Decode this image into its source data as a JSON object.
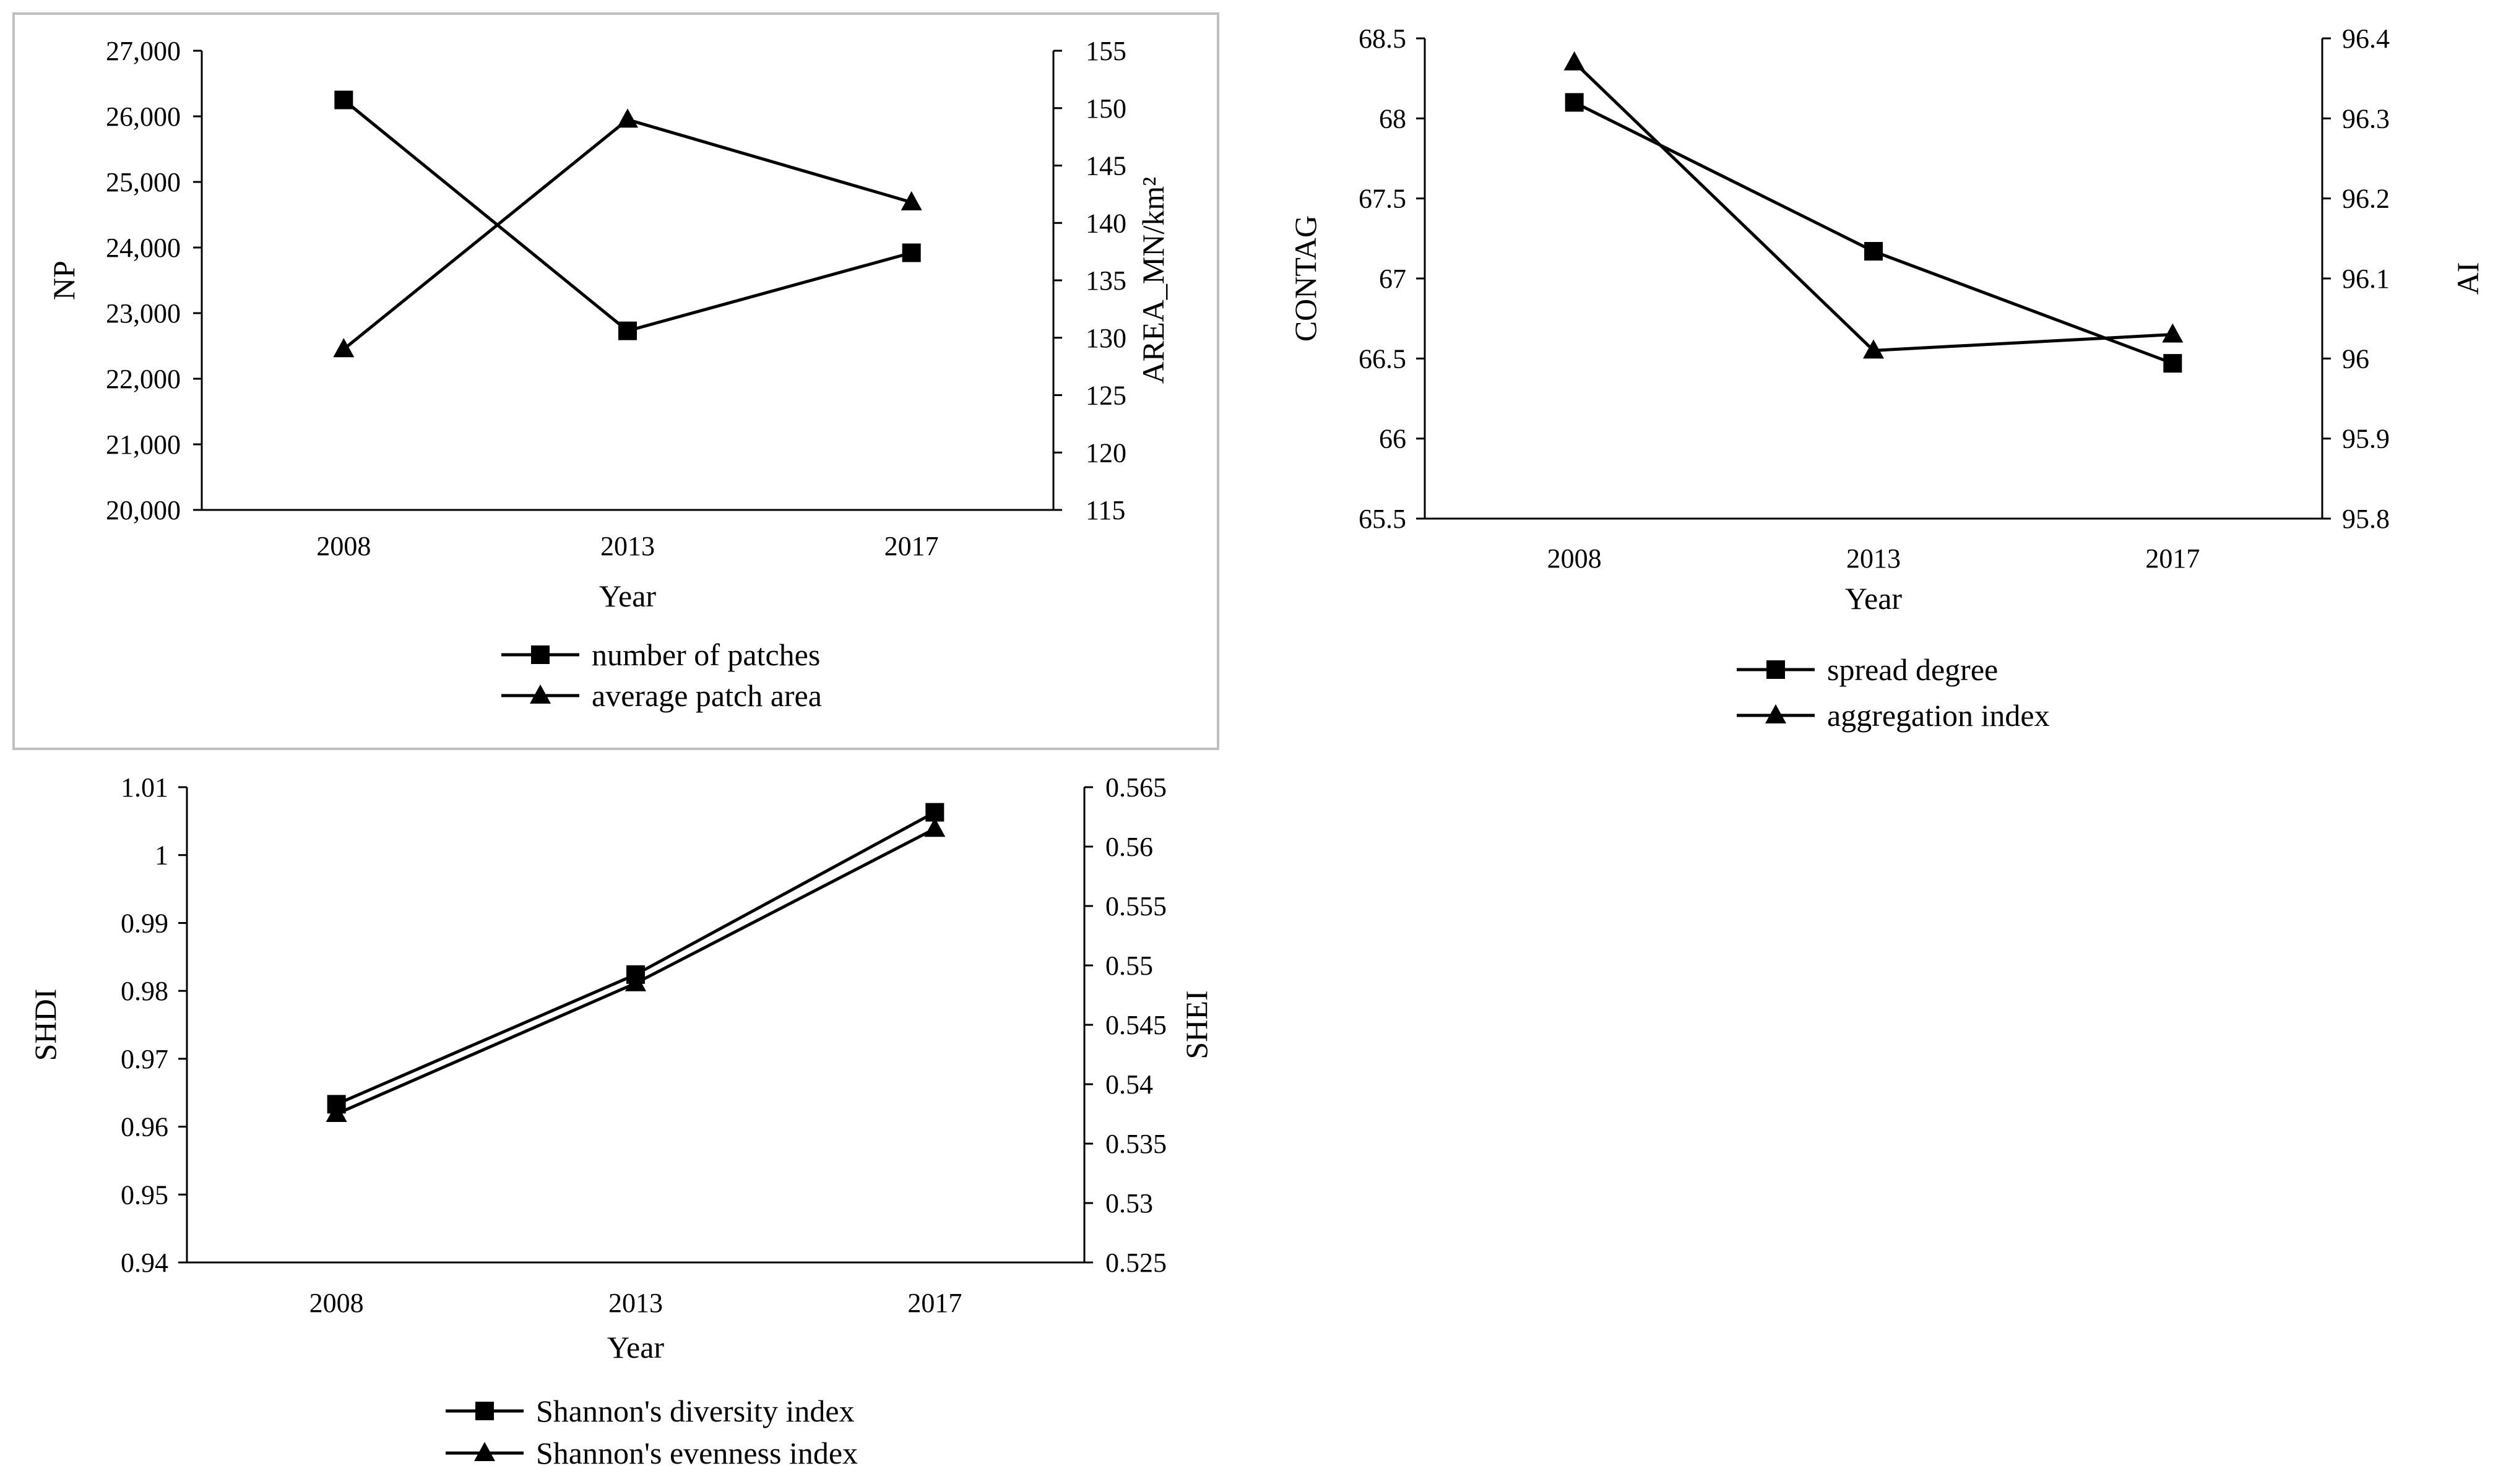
{
  "chart_data": [
    {
      "id": "chart-np-area",
      "type": "line",
      "xlabel": "Year",
      "categories": [
        "2008",
        "2013",
        "2017"
      ],
      "left_axis": {
        "label": "NP",
        "ylim": [
          20000,
          27000
        ],
        "ticks": [
          20000,
          21000,
          22000,
          23000,
          24000,
          25000,
          26000,
          27000
        ],
        "tick_labels": [
          "20,000",
          "21,000",
          "22,000",
          "23,000",
          "24,000",
          "25,000",
          "26,000",
          "27,000"
        ]
      },
      "right_axis": {
        "label": "AREA_MN/km²",
        "ylim": [
          115,
          155
        ],
        "ticks": [
          115,
          120,
          125,
          130,
          135,
          140,
          145,
          150,
          155
        ],
        "tick_labels": [
          "115",
          "120",
          "125",
          "130",
          "135",
          "140",
          "145",
          "150",
          "155"
        ]
      },
      "series": [
        {
          "name": "number of patches",
          "axis": "left",
          "marker": "square",
          "values": [
            26250,
            22730,
            23920
          ]
        },
        {
          "name": "average patch area",
          "axis": "right",
          "marker": "triangle",
          "values": [
            129,
            149,
            141.8
          ]
        }
      ],
      "bordered": true
    },
    {
      "id": "chart-contag-ai",
      "type": "line",
      "xlabel": "Year",
      "categories": [
        "2008",
        "2013",
        "2017"
      ],
      "left_axis": {
        "label": "CONTAG",
        "ylim": [
          65.5,
          68.5
        ],
        "ticks": [
          65.5,
          66,
          66.5,
          67,
          67.5,
          68,
          68.5
        ],
        "tick_labels": [
          "65.5",
          "66",
          "66.5",
          "67",
          "67.5",
          "68",
          "68.5"
        ]
      },
      "right_axis": {
        "label": "AI",
        "ylim": [
          95.8,
          96.4
        ],
        "ticks": [
          95.8,
          95.9,
          96,
          96.1,
          96.2,
          96.3,
          96.4
        ],
        "tick_labels": [
          "95.8",
          "95.9",
          "96",
          "96.1",
          "96.2",
          "96.3",
          "96.4"
        ]
      },
      "series": [
        {
          "name": "spread degree",
          "axis": "left",
          "marker": "square",
          "values": [
            68.1,
            67.17,
            66.47
          ]
        },
        {
          "name": "aggregation index",
          "axis": "right",
          "marker": "triangle",
          "values": [
            96.37,
            96.01,
            96.03
          ]
        }
      ],
      "bordered": false
    },
    {
      "id": "chart-shdi-shei",
      "type": "line",
      "xlabel": "Year",
      "categories": [
        "2008",
        "2013",
        "2017"
      ],
      "left_axis": {
        "label": "SHDI",
        "ylim": [
          0.94,
          1.01
        ],
        "ticks": [
          0.94,
          0.95,
          0.96,
          0.97,
          0.98,
          0.99,
          1.0,
          1.01
        ],
        "tick_labels": [
          "0.94",
          "0.95",
          "0.96",
          "0.97",
          "0.98",
          "0.99",
          "1",
          "1.01"
        ]
      },
      "right_axis": {
        "label": "SHEI",
        "ylim": [
          0.525,
          0.565
        ],
        "ticks": [
          0.525,
          0.53,
          0.535,
          0.54,
          0.545,
          0.55,
          0.555,
          0.56,
          0.565
        ],
        "tick_labels": [
          "0.525",
          "0.53",
          "0.535",
          "0.54",
          "0.545",
          "0.55",
          "0.555",
          "0.56",
          "0.565"
        ]
      },
      "series": [
        {
          "name": "Shannon's diversity index",
          "axis": "left",
          "marker": "square",
          "values": [
            0.9633,
            0.9824,
            1.0063
          ]
        },
        {
          "name": "Shannon's evenness index",
          "axis": "right",
          "marker": "triangle",
          "values": [
            0.5375,
            0.5485,
            0.5615
          ]
        }
      ],
      "bordered": false
    }
  ]
}
